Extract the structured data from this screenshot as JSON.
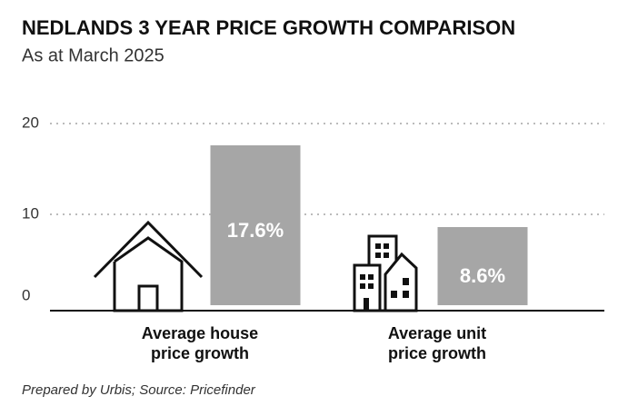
{
  "chart_data": {
    "type": "bar",
    "title": "NEDLANDS 3 YEAR PRICE GROWTH COMPARISON",
    "subtitle": "As at March 2025",
    "categories": [
      "Average house\nprice growth",
      "Average unit\nprice growth"
    ],
    "values": [
      17.6,
      8.6
    ],
    "value_labels": [
      "17.6%",
      "8.6%"
    ],
    "color": "#a6a6a6",
    "ylim": [
      0,
      20
    ],
    "yticks": [
      0,
      10,
      20
    ],
    "grid": true,
    "source": "Prepared by Urbis; Source: Pricefinder"
  }
}
